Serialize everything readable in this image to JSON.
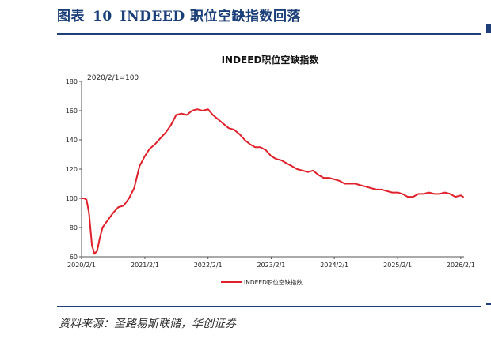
{
  "header": {
    "label": "图表",
    "number": "10",
    "title": "INDEED 职位空缺指数回落"
  },
  "source": "资料来源：圣路易斯联储，华创证券",
  "colors": {
    "accent": "#1f3f78",
    "series": "#e0202a"
  },
  "chart_data": {
    "type": "line",
    "title": "INDEED职位空缺指数",
    "annotation": "2020/2/1=100",
    "ylim": [
      60,
      180
    ],
    "yticks": [
      60,
      80,
      100,
      120,
      140,
      160,
      180
    ],
    "xticks": [
      "2020/2/1",
      "2021/2/1",
      "2022/2/1",
      "2023/2/1",
      "2024/2/1",
      "2025/2/1",
      "2026/2/1"
    ],
    "xlim": [
      "2020/2/1",
      "2026/2/20"
    ],
    "legend": {
      "position": "bottom"
    },
    "series": [
      {
        "name": "INDEED职位空缺指数",
        "color": "#e0202a",
        "x": [
          "2020/2/1",
          "2020/2/15",
          "2020/3/1",
          "2020/3/15",
          "2020/4/1",
          "2020/4/15",
          "2020/5/1",
          "2020/5/15",
          "2020/6/1",
          "2020/7/1",
          "2020/8/1",
          "2020/9/1",
          "2020/10/1",
          "2020/11/1",
          "2020/12/1",
          "2021/1/1",
          "2021/2/1",
          "2021/3/1",
          "2021/4/1",
          "2021/5/1",
          "2021/6/1",
          "2021/7/1",
          "2021/8/1",
          "2021/9/1",
          "2021/10/1",
          "2021/11/1",
          "2021/12/1",
          "2022/1/1",
          "2022/2/1",
          "2022/3/1",
          "2022/4/1",
          "2022/5/1",
          "2022/6/1",
          "2022/7/1",
          "2022/8/1",
          "2022/9/1",
          "2022/10/1",
          "2022/11/1",
          "2022/12/1",
          "2023/1/1",
          "2023/2/1",
          "2023/3/1",
          "2023/4/1",
          "2023/5/1",
          "2023/6/1",
          "2023/7/1",
          "2023/8/1",
          "2023/9/1",
          "2023/10/1",
          "2023/11/1",
          "2023/12/1",
          "2024/1/1",
          "2024/2/1",
          "2024/3/1",
          "2024/4/1",
          "2024/5/1",
          "2024/6/1",
          "2024/7/1",
          "2024/8/1",
          "2024/9/1",
          "2024/10/1",
          "2024/11/1",
          "2024/12/1",
          "2025/1/1",
          "2025/2/1",
          "2025/3/1",
          "2025/4/1",
          "2025/5/1",
          "2025/6/1",
          "2025/7/1",
          "2025/8/1",
          "2025/9/1",
          "2025/10/1",
          "2025/11/1",
          "2025/12/1",
          "2026/1/1",
          "2026/2/1",
          "2026/2/15"
        ],
        "y": [
          100,
          100,
          99,
          90,
          68,
          62,
          64,
          72,
          80,
          85,
          90,
          94,
          95,
          100,
          107,
          122,
          129,
          134,
          137,
          141,
          145,
          150,
          157,
          158,
          157,
          160,
          161,
          160,
          161,
          157,
          154,
          151,
          148,
          147,
          144,
          140,
          137,
          135,
          135,
          133,
          129,
          127,
          126,
          124,
          122,
          120,
          119,
          118,
          119,
          116,
          114,
          114,
          113,
          112,
          110,
          110,
          110,
          109,
          108,
          107,
          106,
          106,
          105,
          104,
          104,
          103,
          101,
          101,
          103,
          103,
          104,
          103,
          103,
          104,
          103,
          101,
          102,
          101
        ]
      }
    ]
  }
}
